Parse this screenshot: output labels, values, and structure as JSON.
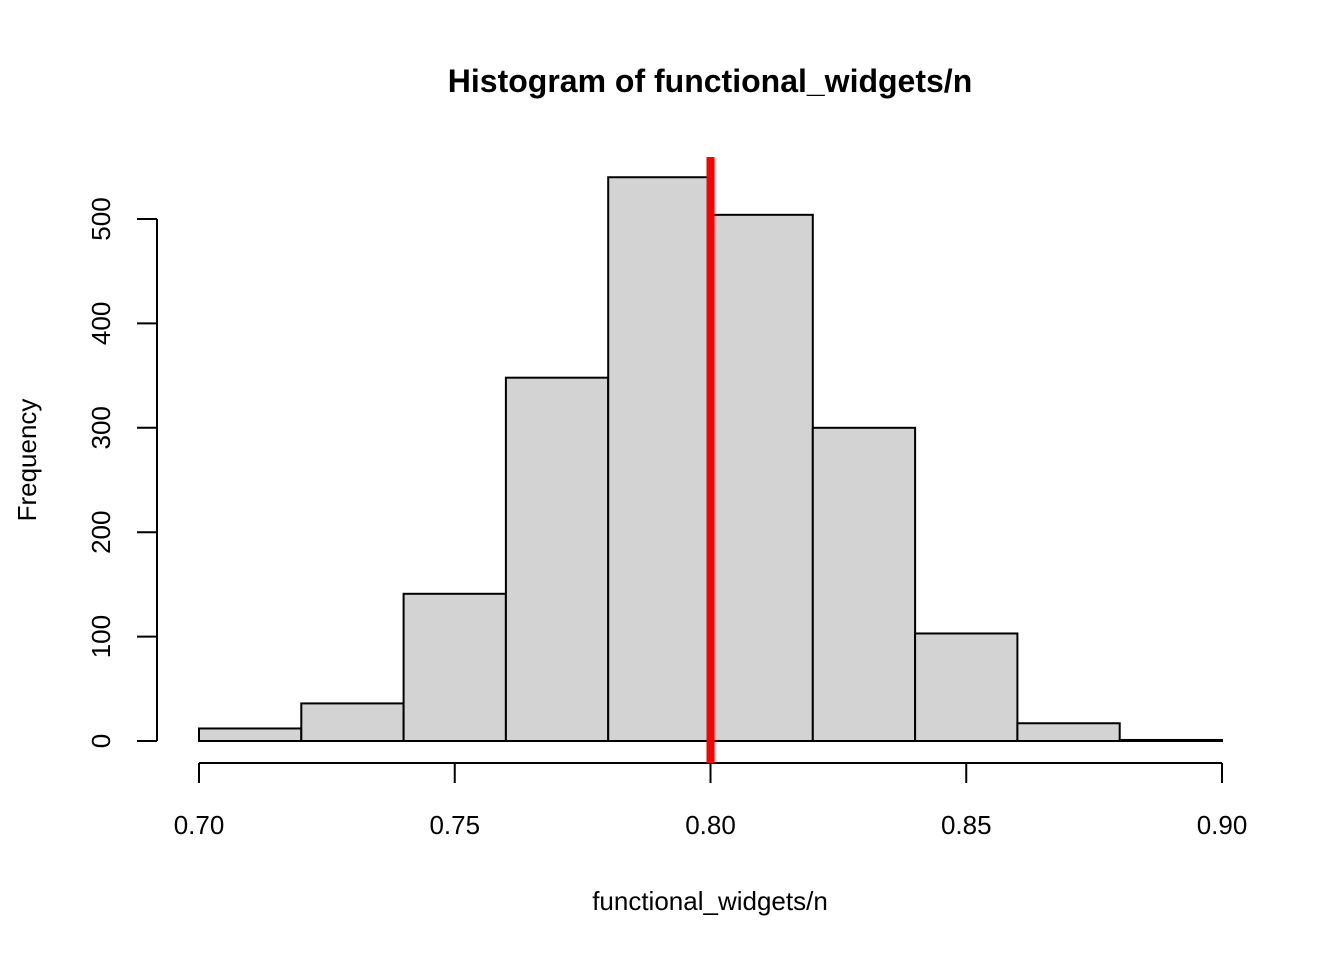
{
  "chart_data": {
    "type": "bar",
    "title": "Histogram of functional_widgets/n",
    "xlabel": "functional_widgets/n",
    "ylabel": "Frequency",
    "bins": [
      {
        "start": 0.7,
        "end": 0.72,
        "count": 12
      },
      {
        "start": 0.72,
        "end": 0.74,
        "count": 36
      },
      {
        "start": 0.74,
        "end": 0.76,
        "count": 141
      },
      {
        "start": 0.76,
        "end": 0.78,
        "count": 348
      },
      {
        "start": 0.78,
        "end": 0.8,
        "count": 540
      },
      {
        "start": 0.8,
        "end": 0.82,
        "count": 504
      },
      {
        "start": 0.82,
        "end": 0.84,
        "count": 300
      },
      {
        "start": 0.84,
        "end": 0.86,
        "count": 103
      },
      {
        "start": 0.86,
        "end": 0.88,
        "count": 17
      },
      {
        "start": 0.88,
        "end": 0.9,
        "count": 1
      }
    ],
    "x_ticks": [
      0.7,
      0.75,
      0.8,
      0.85,
      0.9
    ],
    "x_tick_labels": [
      "0.70",
      "0.75",
      "0.80",
      "0.85",
      "0.90"
    ],
    "y_ticks": [
      0,
      100,
      200,
      300,
      400,
      500
    ],
    "y_tick_labels": [
      "0",
      "100",
      "200",
      "300",
      "400",
      "500"
    ],
    "xlim": [
      0.7,
      0.9
    ],
    "ylim": [
      0,
      560
    ],
    "reference_line": {
      "x": 0.8,
      "color": "#ff0000"
    },
    "bar_fill": "#d3d3d3",
    "bar_stroke": "#000000",
    "grid": false,
    "legend": "none"
  }
}
